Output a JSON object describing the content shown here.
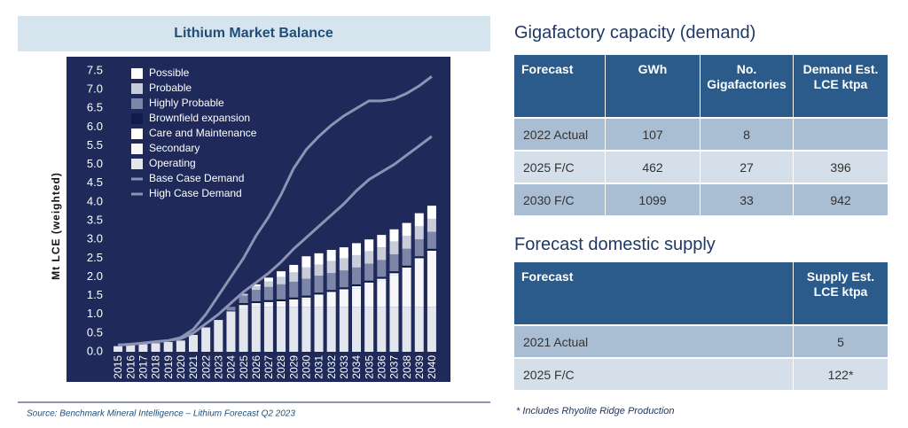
{
  "chart_data": {
    "type": "stacked-bar-line",
    "title": "Lithium Market Balance",
    "ylabel": "Mt LCE (weighted)",
    "categories": [
      "2015",
      "2016",
      "2017",
      "2018",
      "2019",
      "2020",
      "2021",
      "2022",
      "2023",
      "2024",
      "2025",
      "2026",
      "2027",
      "2028",
      "2029",
      "2030",
      "2031",
      "2032",
      "2033",
      "2034",
      "2035",
      "2036",
      "2037",
      "2038",
      "2039",
      "2040"
    ],
    "ylim": [
      0,
      7.5
    ],
    "yticks": [
      {
        "value": 0,
        "label": "0.0"
      },
      {
        "value": 0.5,
        "label": "0.5"
      },
      {
        "value": 1,
        "label": "1.0"
      },
      {
        "value": 1.5,
        "label": "1.5"
      },
      {
        "value": 2,
        "label": "2.0"
      },
      {
        "value": 2.5,
        "label": "2.5"
      },
      {
        "value": 3,
        "label": "3.0"
      },
      {
        "value": 3.5,
        "label": "3.5"
      },
      {
        "value": 4,
        "label": "4.0"
      },
      {
        "value": 4.5,
        "label": "4.5"
      },
      {
        "value": 5,
        "label": "5.0"
      },
      {
        "value": 5.5,
        "label": "5.5"
      },
      {
        "value": 6,
        "label": "6.0"
      },
      {
        "value": 6.5,
        "label": "6.5"
      },
      {
        "value": 7,
        "label": "7.0"
      },
      {
        "value": 7.5,
        "label": "7.5"
      }
    ],
    "series": [
      {
        "name": "Operating",
        "color": "#e4e6ee",
        "values": [
          0.15,
          0.18,
          0.2,
          0.23,
          0.26,
          0.3,
          0.45,
          0.65,
          0.85,
          1.05,
          1.15,
          1.2,
          1.2,
          1.2,
          1.2,
          1.2,
          1.2,
          1.2,
          1.2,
          1.2,
          1.2,
          1.2,
          1.2,
          1.2,
          1.2,
          1.2
        ]
      },
      {
        "name": "Secondary",
        "color": "#f7f7fa",
        "values": [
          0,
          0,
          0,
          0,
          0,
          0,
          0,
          0,
          0,
          0,
          0.05,
          0.05,
          0.08,
          0.1,
          0.15,
          0.2,
          0.28,
          0.35,
          0.42,
          0.5,
          0.6,
          0.7,
          0.85,
          1.0,
          1.25,
          1.45
        ]
      },
      {
        "name": "Care and Maintenance",
        "color": "#ffffff",
        "values": [
          0,
          0,
          0,
          0,
          0,
          0,
          0,
          0,
          0,
          0.03,
          0.05,
          0.05,
          0.05,
          0.05,
          0.05,
          0.05,
          0.05,
          0.05,
          0.05,
          0.05,
          0.05,
          0.05,
          0.05,
          0.05,
          0.05,
          0.05
        ]
      },
      {
        "name": "Brownfield expansion",
        "color": "#101c4a",
        "values": [
          0,
          0,
          0,
          0,
          0,
          0,
          0,
          0,
          0,
          0.02,
          0.05,
          0.05,
          0.05,
          0.05,
          0.05,
          0.05,
          0.05,
          0.05,
          0.05,
          0.05,
          0.05,
          0.05,
          0.05,
          0.05,
          0.05,
          0.05
        ]
      },
      {
        "name": "Highly Probable",
        "color": "#7d86a8",
        "values": [
          0,
          0,
          0,
          0,
          0,
          0,
          0,
          0,
          0,
          0.1,
          0.2,
          0.3,
          0.35,
          0.4,
          0.42,
          0.45,
          0.45,
          0.45,
          0.45,
          0.45,
          0.45,
          0.45,
          0.45,
          0.45,
          0.45,
          0.45
        ]
      },
      {
        "name": "Probable",
        "color": "#c9ccd9",
        "values": [
          0,
          0,
          0,
          0,
          0,
          0,
          0,
          0,
          0,
          0,
          0.05,
          0.1,
          0.15,
          0.2,
          0.25,
          0.3,
          0.3,
          0.32,
          0.32,
          0.33,
          0.33,
          0.34,
          0.34,
          0.35,
          0.35,
          0.35
        ]
      },
      {
        "name": "Possible",
        "color": "#ffffff",
        "values": [
          0,
          0,
          0,
          0,
          0,
          0,
          0,
          0,
          0,
          0,
          0,
          0.05,
          0.1,
          0.15,
          0.2,
          0.3,
          0.3,
          0.3,
          0.3,
          0.32,
          0.32,
          0.33,
          0.33,
          0.34,
          0.35,
          0.35
        ]
      }
    ],
    "lines": [
      {
        "name": "Base Case Demand",
        "color": "#8c93b3",
        "values": [
          0.18,
          0.2,
          0.23,
          0.27,
          0.3,
          0.35,
          0.5,
          0.75,
          1.0,
          1.3,
          1.6,
          1.85,
          2.1,
          2.4,
          2.75,
          3.05,
          3.35,
          3.65,
          3.95,
          4.3,
          4.6,
          4.8,
          5.0,
          5.25,
          5.5,
          5.75
        ]
      },
      {
        "name": "High Case Demand",
        "color": "#8c93b3",
        "values": [
          0.18,
          0.2,
          0.23,
          0.27,
          0.3,
          0.38,
          0.6,
          1.0,
          1.5,
          2.0,
          2.5,
          3.1,
          3.6,
          4.2,
          4.9,
          5.4,
          5.75,
          6.05,
          6.3,
          6.5,
          6.7,
          6.7,
          6.75,
          6.9,
          7.1,
          7.35
        ]
      }
    ],
    "source": "Source: Benchmark Mineral Intelligence – Lithium Forecast Q2 2023"
  },
  "tables": [
    {
      "title": "Gigafactory capacity (demand)",
      "headers": [
        "Forecast",
        "GWh",
        "No. Gigafactories",
        "Demand Est. LCE ktpa"
      ],
      "rows": [
        [
          "2022 Actual",
          "107",
          "8",
          null
        ],
        [
          "2025 F/C",
          "462",
          "27",
          "396"
        ],
        [
          "2030 F/C",
          "1099",
          "33",
          "942"
        ]
      ]
    },
    {
      "title": "Forecast domestic supply",
      "headers": [
        "Forecast",
        "Supply Est. LCE ktpa"
      ],
      "rows": [
        [
          "2021 Actual",
          "5"
        ],
        [
          "2025 F/C",
          "122*"
        ]
      ],
      "footnote": "* Includes Rhyolite Ridge Production"
    }
  ]
}
